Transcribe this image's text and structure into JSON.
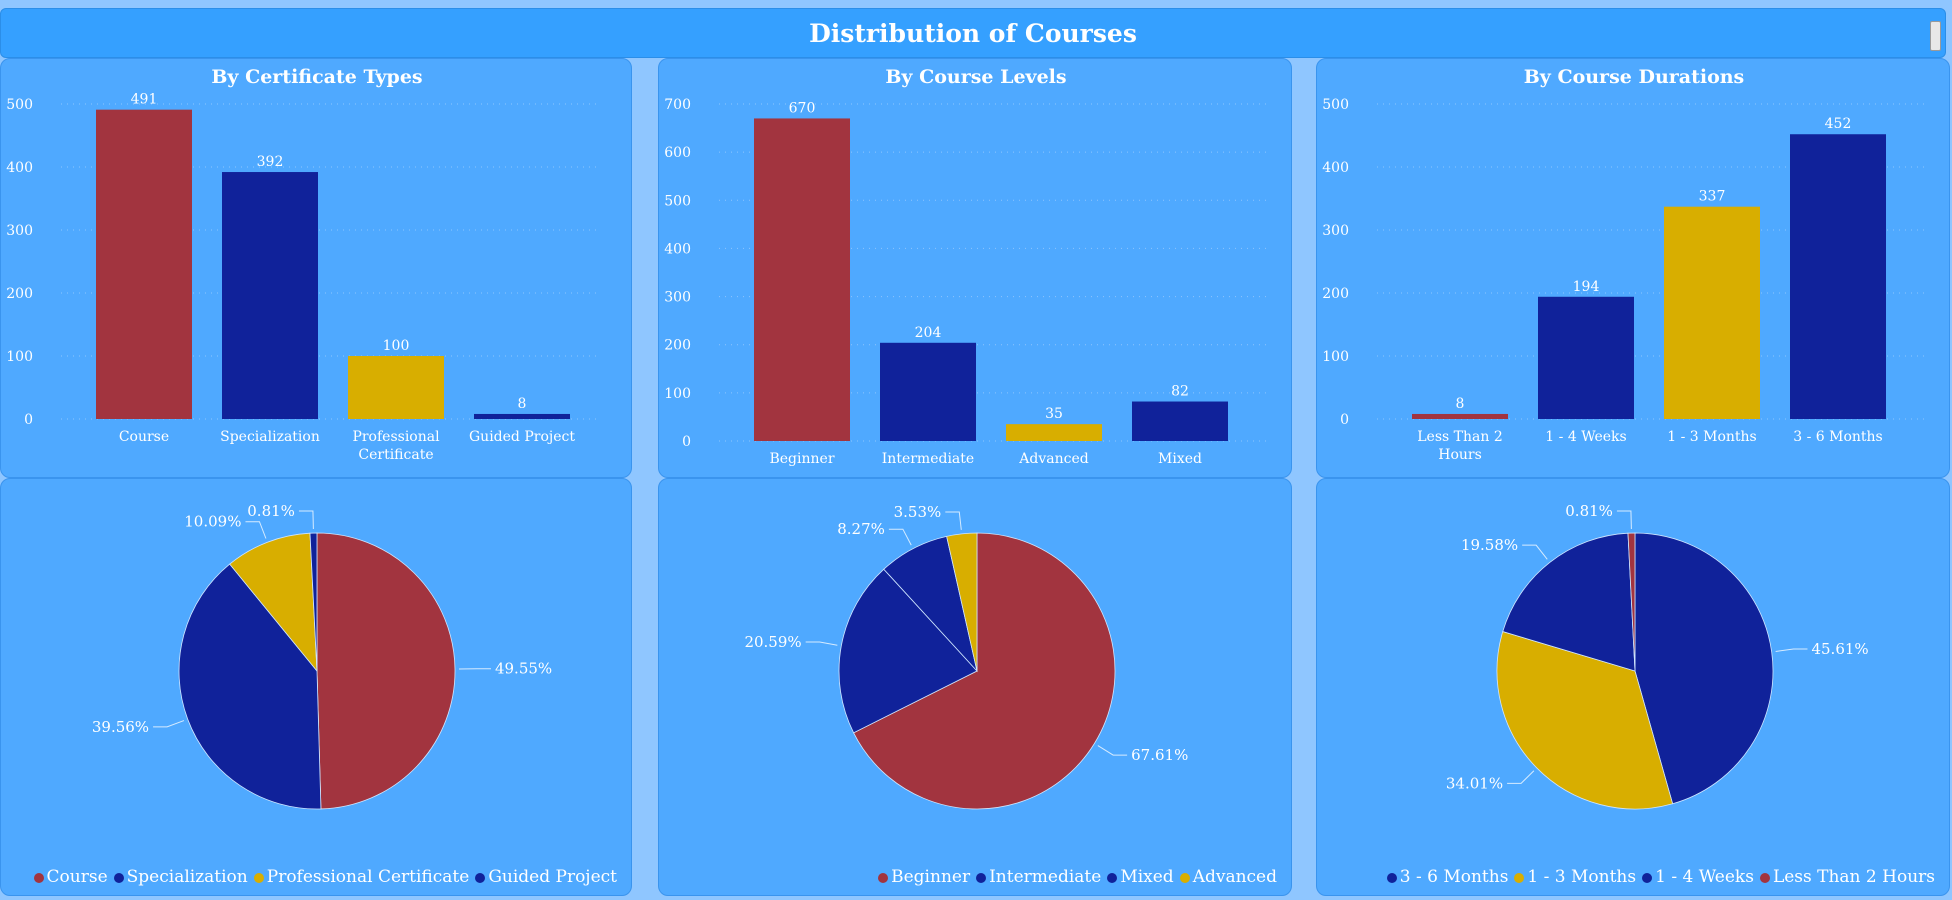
{
  "header": {
    "title": "Distribution of Courses"
  },
  "colors": {
    "red": "#a2343f",
    "navy": "#10229a",
    "gold": "#d8ae00",
    "panel": "#4fa9ff",
    "header": "#35a0ff"
  },
  "chart_data": [
    {
      "type": "bar",
      "title": "By Certificate Types",
      "categories": [
        "Course",
        "Specialization",
        "Professional Certificate",
        "Guided Project"
      ],
      "values": [
        491,
        392,
        100,
        8
      ],
      "data_labels": [
        "491",
        "392",
        "100",
        "8"
      ],
      "ylim": [
        0,
        500
      ],
      "yticks": [
        0,
        100,
        200,
        300,
        400,
        500
      ],
      "bar_colors": [
        "#a2343f",
        "#10229a",
        "#d8ae00",
        "#10229a"
      ],
      "grid": true
    },
    {
      "type": "bar",
      "title": "By Course Levels",
      "categories": [
        "Beginner",
        "Intermediate",
        "Advanced",
        "Mixed"
      ],
      "values": [
        670,
        204,
        35,
        82
      ],
      "data_labels": [
        "670",
        "204",
        "35",
        "82"
      ],
      "ylim": [
        0,
        700
      ],
      "yticks": [
        0,
        100,
        200,
        300,
        400,
        500,
        600,
        700
      ],
      "bar_colors": [
        "#a2343f",
        "#10229a",
        "#d8ae00",
        "#10229a"
      ],
      "grid": true
    },
    {
      "type": "bar",
      "title": "By Course Durations",
      "categories": [
        "Less Than 2 Hours",
        "1 - 4 Weeks",
        "1 - 3 Months",
        "3 - 6 Months"
      ],
      "values": [
        8,
        194,
        337,
        452
      ],
      "data_labels": [
        "8",
        "194",
        "337",
        "452"
      ],
      "ylim": [
        0,
        500
      ],
      "yticks": [
        0,
        100,
        200,
        300,
        400,
        500
      ],
      "bar_colors": [
        "#a2343f",
        "#10229a",
        "#d8ae00",
        "#10229a"
      ],
      "grid": true
    },
    {
      "type": "pie",
      "slices": [
        {
          "label": "Course",
          "value": 49.55,
          "display": "49.55%",
          "color": "#a2343f"
        },
        {
          "label": "Specialization",
          "value": 39.56,
          "display": "39.56%",
          "color": "#10229a"
        },
        {
          "label": "Professional Certificate",
          "value": 10.09,
          "display": "10.09%",
          "color": "#d8ae00"
        },
        {
          "label": "Guided Project",
          "value": 0.81,
          "display": "0.81%",
          "color": "#10229a"
        }
      ],
      "legend": [
        "Course",
        "Specialization",
        "Professional Certificate",
        "Guided Project"
      ],
      "legend_colors": [
        "#a2343f",
        "#10229a",
        "#d8ae00",
        "#10229a"
      ]
    },
    {
      "type": "pie",
      "slices": [
        {
          "label": "Beginner",
          "value": 67.61,
          "display": "67.61%",
          "color": "#a2343f"
        },
        {
          "label": "Intermediate",
          "value": 20.59,
          "display": "20.59%",
          "color": "#10229a"
        },
        {
          "label": "Mixed",
          "value": 8.27,
          "display": "8.27%",
          "color": "#10229a"
        },
        {
          "label": "Advanced",
          "value": 3.53,
          "display": "3.53%",
          "color": "#d8ae00"
        }
      ],
      "legend": [
        "Beginner",
        "Intermediate",
        "Mixed",
        "Advanced"
      ],
      "legend_colors": [
        "#a2343f",
        "#10229a",
        "#10229a",
        "#d8ae00"
      ]
    },
    {
      "type": "pie",
      "slices": [
        {
          "label": "3 - 6 Months",
          "value": 45.61,
          "display": "45.61%",
          "color": "#10229a"
        },
        {
          "label": "1 - 3 Months",
          "value": 34.01,
          "display": "34.01%",
          "color": "#d8ae00"
        },
        {
          "label": "1 - 4 Weeks",
          "value": 19.58,
          "display": "19.58%",
          "color": "#10229a"
        },
        {
          "label": "Less Than 2 Hours",
          "value": 0.81,
          "display": "0.81%",
          "color": "#a2343f"
        }
      ],
      "legend": [
        "3 - 6 Months",
        "1 - 3 Months",
        "1 - 4 Weeks",
        "Less Than 2 Hours"
      ],
      "legend_colors": [
        "#10229a",
        "#d8ae00",
        "#10229a",
        "#a2343f"
      ]
    }
  ]
}
